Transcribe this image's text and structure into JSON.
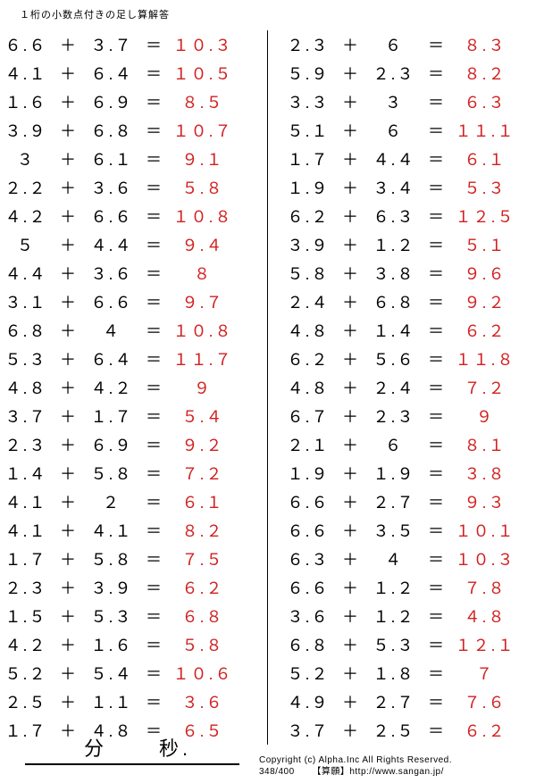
{
  "title": "１桁の小数点付きの足し算解答",
  "operator": "＋",
  "equals": "＝",
  "timer": {
    "min_label": "分",
    "sec_label": "秒."
  },
  "footer": {
    "copyright": "Copyright (c)  Alpha.Inc All Rights Reserved.",
    "pagenum": "348/400",
    "site": "【算願】http://www.sangan.jp/"
  },
  "left": [
    {
      "a": "6.6",
      "b": "3.7",
      "ans": "10.3"
    },
    {
      "a": "4.1",
      "b": "6.4",
      "ans": "10.5"
    },
    {
      "a": "1.6",
      "b": "6.9",
      "ans": "8.5"
    },
    {
      "a": "3.9",
      "b": "6.8",
      "ans": "10.7"
    },
    {
      "a": "3",
      "b": "6.1",
      "ans": "9.1"
    },
    {
      "a": "2.2",
      "b": "3.6",
      "ans": "5.8"
    },
    {
      "a": "4.2",
      "b": "6.6",
      "ans": "10.8"
    },
    {
      "a": "5",
      "b": "4.4",
      "ans": "9.4"
    },
    {
      "a": "4.4",
      "b": "3.6",
      "ans": "8"
    },
    {
      "a": "3.1",
      "b": "6.6",
      "ans": "9.7"
    },
    {
      "a": "6.8",
      "b": "4",
      "ans": "10.8"
    },
    {
      "a": "5.3",
      "b": "6.4",
      "ans": "11.7"
    },
    {
      "a": "4.8",
      "b": "4.2",
      "ans": "9"
    },
    {
      "a": "3.7",
      "b": "1.7",
      "ans": "5.4"
    },
    {
      "a": "2.3",
      "b": "6.9",
      "ans": "9.2"
    },
    {
      "a": "1.4",
      "b": "5.8",
      "ans": "7.2"
    },
    {
      "a": "4.1",
      "b": "2",
      "ans": "6.1"
    },
    {
      "a": "4.1",
      "b": "4.1",
      "ans": "8.2"
    },
    {
      "a": "1.7",
      "b": "5.8",
      "ans": "7.5"
    },
    {
      "a": "2.3",
      "b": "3.9",
      "ans": "6.2"
    },
    {
      "a": "1.5",
      "b": "5.3",
      "ans": "6.8"
    },
    {
      "a": "4.2",
      "b": "1.6",
      "ans": "5.8"
    },
    {
      "a": "5.2",
      "b": "5.4",
      "ans": "10.6"
    },
    {
      "a": "2.5",
      "b": "1.1",
      "ans": "3.6"
    },
    {
      "a": "1.7",
      "b": "4.8",
      "ans": "6.5"
    }
  ],
  "right": [
    {
      "a": "2.3",
      "b": "6",
      "ans": "8.3"
    },
    {
      "a": "5.9",
      "b": "2.3",
      "ans": "8.2"
    },
    {
      "a": "3.3",
      "b": "3",
      "ans": "6.3"
    },
    {
      "a": "5.1",
      "b": "6",
      "ans": "11.1"
    },
    {
      "a": "1.7",
      "b": "4.4",
      "ans": "6.1"
    },
    {
      "a": "1.9",
      "b": "3.4",
      "ans": "5.3"
    },
    {
      "a": "6.2",
      "b": "6.3",
      "ans": "12.5"
    },
    {
      "a": "3.9",
      "b": "1.2",
      "ans": "5.1"
    },
    {
      "a": "5.8",
      "b": "3.8",
      "ans": "9.6"
    },
    {
      "a": "2.4",
      "b": "6.8",
      "ans": "9.2"
    },
    {
      "a": "4.8",
      "b": "1.4",
      "ans": "6.2"
    },
    {
      "a": "6.2",
      "b": "5.6",
      "ans": "11.8"
    },
    {
      "a": "4.8",
      "b": "2.4",
      "ans": "7.2"
    },
    {
      "a": "6.7",
      "b": "2.3",
      "ans": "9"
    },
    {
      "a": "2.1",
      "b": "6",
      "ans": "8.1"
    },
    {
      "a": "1.9",
      "b": "1.9",
      "ans": "3.8"
    },
    {
      "a": "6.6",
      "b": "2.7",
      "ans": "9.3"
    },
    {
      "a": "6.6",
      "b": "3.5",
      "ans": "10.1"
    },
    {
      "a": "6.3",
      "b": "4",
      "ans": "10.3"
    },
    {
      "a": "6.6",
      "b": "1.2",
      "ans": "7.8"
    },
    {
      "a": "3.6",
      "b": "1.2",
      "ans": "4.8"
    },
    {
      "a": "6.8",
      "b": "5.3",
      "ans": "12.1"
    },
    {
      "a": "5.2",
      "b": "1.8",
      "ans": "7"
    },
    {
      "a": "4.9",
      "b": "2.7",
      "ans": "7.6"
    },
    {
      "a": "3.7",
      "b": "2.5",
      "ans": "6.2"
    }
  ]
}
